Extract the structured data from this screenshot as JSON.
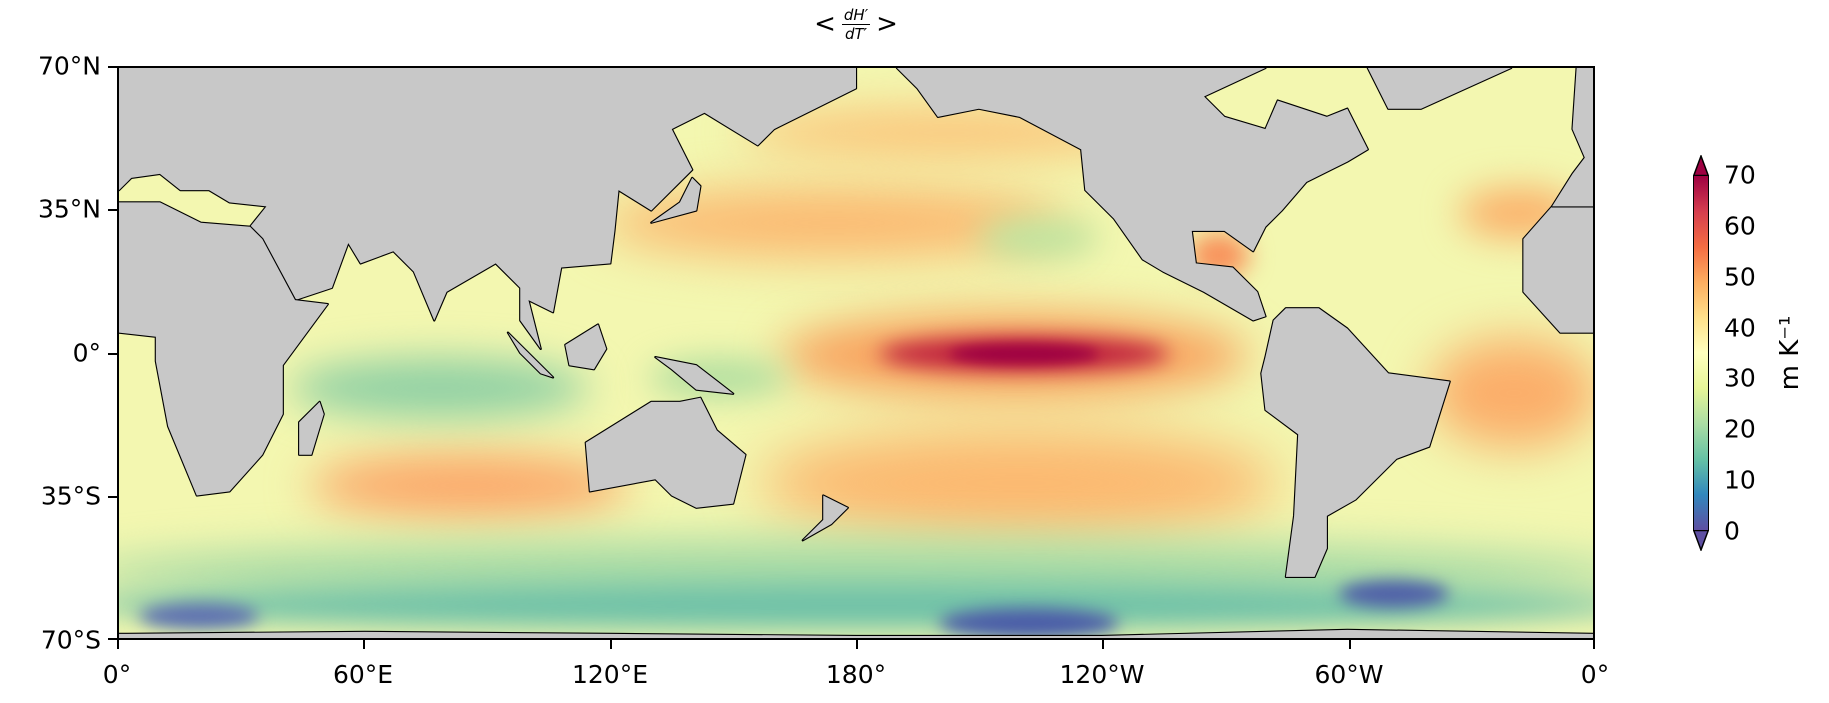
{
  "title": {
    "prefix": "<",
    "numerator": "dH′",
    "denominator": "dT′",
    "suffix": ">"
  },
  "chart_data": {
    "type": "heatmap",
    "title": "< dH'/dT' >",
    "projection": "PlateCarree, central longitude 180",
    "x_ticks": [
      "0°",
      "60°E",
      "120°E",
      "180°",
      "120°W",
      "60°W",
      "0°"
    ],
    "y_ticks": [
      "70°N",
      "35°N",
      "0°",
      "35°S",
      "70°S"
    ],
    "xlim": [
      0,
      360
    ],
    "ylim": [
      -70,
      70
    ],
    "colormap": "Spectral_r",
    "colorbar": {
      "label": "m K⁻¹",
      "ticks": [
        "0",
        "10",
        "20",
        "30",
        "40",
        "50",
        "60",
        "70"
      ],
      "range": [
        0,
        70
      ],
      "extend": "both"
    },
    "features": [
      {
        "region": "Equatorial central-east Pacific",
        "approx_value": 70
      },
      {
        "region": "Subtropical N Pacific",
        "approx_value": 45
      },
      {
        "region": "Subtropical S Pacific / S Indian",
        "approx_value": 45
      },
      {
        "region": "Tropical Indian Ocean",
        "approx_value": 20
      },
      {
        "region": "Southern Ocean",
        "approx_value": 10
      }
    ]
  },
  "colors": {
    "land": "#c8c8c8",
    "coast": "#000000",
    "cmap_low": "#5e4fa2",
    "cmap_high": "#9e0142"
  }
}
